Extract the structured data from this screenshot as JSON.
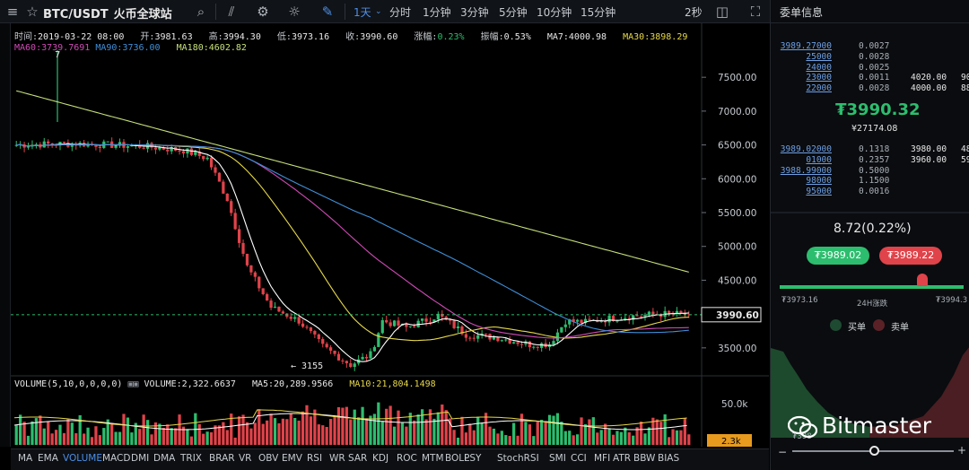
{
  "toolbar": {
    "symbol": "BTC/USDT",
    "exchange": "火币全球站",
    "timeframes": [
      "1天",
      "分时",
      "1分钟",
      "3分钟",
      "5分钟",
      "10分钟",
      "15分钟"
    ],
    "active_timeframe": "1天",
    "refresh": "2秒"
  },
  "ohlc": {
    "time_label": "时间:",
    "time": "2019-03-22 08:00",
    "open_label": "开:",
    "open": "3981.63",
    "high_label": "高:",
    "high": "3994.30",
    "low_label": "低:",
    "low": "3973.16",
    "close_label": "收:",
    "close": "3990.60",
    "chg_label": "涨幅:",
    "chg": "0.23%",
    "amp_label": "振幅:",
    "amp": "0.53%",
    "ma7": "MA7:4000.98",
    "ma30": "MA30:3898.29",
    "ma60": "MA60:3739.7691",
    "ma90": "MA90:3736.00",
    "ma180": "MA180:4602.82"
  },
  "chart_data": {
    "type": "candlestick",
    "price_axis": {
      "ticks": [
        "7500.00",
        "7000.00",
        "6500.00",
        "6000.00",
        "5500.00",
        "5000.00",
        "4500.00",
        "4000.00",
        "3500.00"
      ],
      "ylim": [
        3100,
        7900
      ]
    },
    "last_price_tag": "3990.60",
    "high_marker": "7",
    "low_marker": "← 3155",
    "ma_lines": [
      {
        "name": "MA7",
        "color": "#ffffff"
      },
      {
        "name": "MA30",
        "color": "#e6d84a"
      },
      {
        "name": "MA60",
        "color": "#d04ab6"
      },
      {
        "name": "MA90",
        "color": "#3f8fd8"
      },
      {
        "name": "MA180",
        "color": "#c6e07a"
      }
    ],
    "volume": {
      "label": "VOLUME(5,10,0,0,0,0)",
      "value": "VOLUME:2,322.6637",
      "ma5": "MA5:20,289.9566",
      "ma10": "MA10:21,804.1498",
      "axis_tick": "50.0k",
      "last_tag": "2.3k"
    }
  },
  "indicators": [
    "MA",
    "EMA",
    "VOLUME",
    "MACD",
    "DMI",
    "DMA",
    "TRIX",
    "BRAR",
    "VR",
    "OBV",
    "EMV",
    "RSI",
    "WR",
    "SAR",
    "KDJ",
    "ROC",
    "MTM",
    "BOLL",
    "PSY",
    "StochRSI",
    "SMI",
    "CCI",
    "MFI",
    "ATR",
    "BBW",
    "BIAS"
  ],
  "active_indicator": "VOLUME",
  "orderbook": {
    "title": "委单信息",
    "asks": [
      {
        "price": "3989.27000",
        "amount": "0.0027",
        "p2": "",
        "a2": ""
      },
      {
        "price": "25000",
        "amount": "0.0028",
        "p2": "",
        "a2": ""
      },
      {
        "price": "24000",
        "amount": "0.0025",
        "p2": "",
        "a2": ""
      },
      {
        "price": "23000",
        "amount": "0.0011",
        "p2": "4020.00",
        "a2": "90"
      },
      {
        "price": "22000",
        "amount": "0.0028",
        "p2": "4000.00",
        "a2": "88"
      }
    ],
    "last_price": "₮3990.32",
    "cny_price": "¥27174.08",
    "bids": [
      {
        "price": "3989.02000",
        "amount": "0.1318",
        "p2": "3980.00",
        "a2": "48"
      },
      {
        "price": "01000",
        "amount": "0.2357",
        "p2": "3960.00",
        "a2": "59"
      },
      {
        "price": "3988.99000",
        "amount": "0.5000",
        "p2": "",
        "a2": ""
      },
      {
        "price": "98000",
        "amount": "1.1500",
        "p2": "",
        "a2": ""
      },
      {
        "price": "95000",
        "amount": "0.0016",
        "p2": "",
        "a2": ""
      }
    ],
    "change": "8.72(0.22%)",
    "buy_price": "₮3989.02",
    "sell_price": "₮3989.22",
    "low24": "₮3973.16",
    "range_label": "24H涨跌",
    "high24": "₮3994.3",
    "buy_label": "买单",
    "sell_label": "卖单",
    "depth_price": "₮398"
  },
  "watermark": "Bitmaster",
  "colors": {
    "up": "#2dbd6e",
    "down": "#e0434a",
    "accent": "#4c8fe8"
  }
}
